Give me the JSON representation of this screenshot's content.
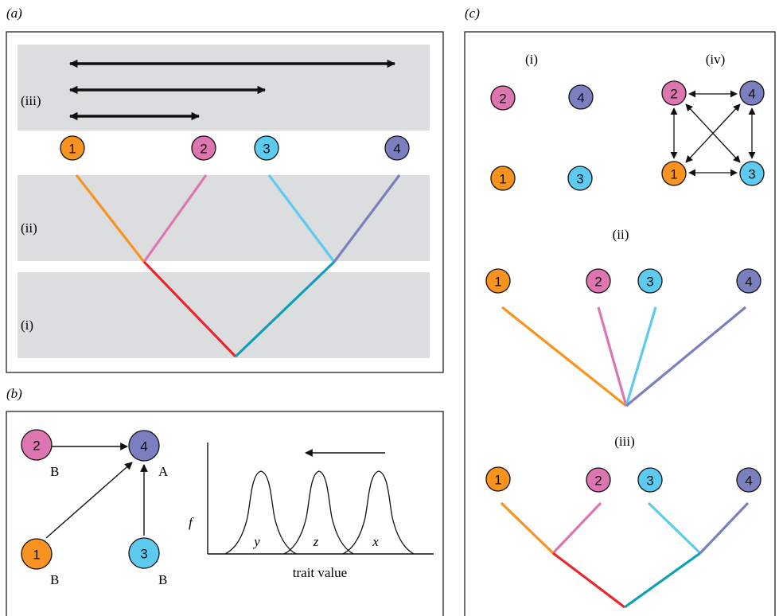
{
  "colors": {
    "species1": "#f7931e",
    "species2": "#dd76b0",
    "species3": "#5ccbef",
    "species4": "#7b7fc0",
    "ancestorLeft": "#e8262c",
    "ancestorRight": "#0e9fb8",
    "band": "#dcdddf",
    "ink": "#111111"
  },
  "species": [
    "1",
    "2",
    "3",
    "4"
  ],
  "panelA": {
    "label": "(a)",
    "band_i": "(i)",
    "band_ii": "(ii)",
    "band_iii": "(iii)"
  },
  "panelB": {
    "label": "(b)",
    "node_annotations": {
      "n1": "B",
      "n2": "B",
      "n3": "B",
      "n4": "A"
    },
    "axis_y": "f",
    "axis_x": "trait value",
    "peaks": [
      "y",
      "z",
      "x"
    ]
  },
  "panelC": {
    "label": "(c)",
    "sub_i": "(i)",
    "sub_ii": "(ii)",
    "sub_iii": "(iii)",
    "sub_iv": "(iv)"
  }
}
